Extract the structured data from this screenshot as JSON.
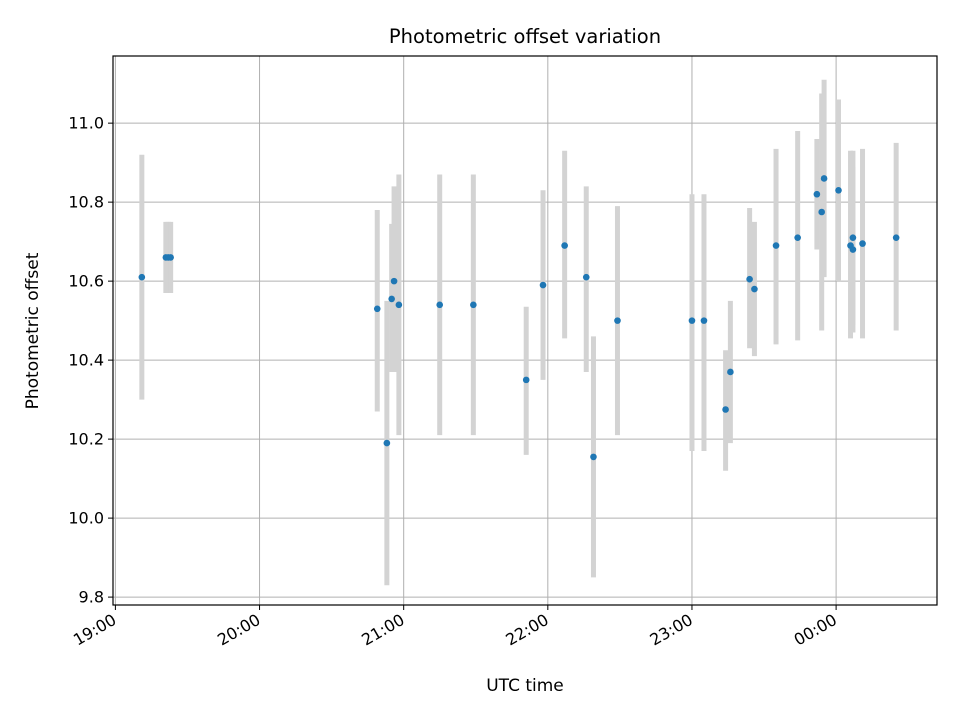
{
  "chart_data": {
    "type": "scatter",
    "title": "Photometric offset variation",
    "xlabel": "UTC time",
    "ylabel": "Photometric offset",
    "x_ticks": [
      "19:00",
      "20:00",
      "21:00",
      "22:00",
      "23:00",
      "00:00"
    ],
    "y_ticks": [
      "9.8",
      "10.0",
      "10.2",
      "10.4",
      "10.6",
      "10.8",
      "11.0"
    ],
    "xlim": [
      "18:59",
      "00:42"
    ],
    "ylim": [
      9.78,
      11.17
    ],
    "grid": true,
    "colors": {
      "points": "#1f77b4",
      "errorbars": "#d3d3d3",
      "grid": "#b0b0b0"
    },
    "points": [
      {
        "x": "19:11",
        "y": 10.61,
        "low": 10.3,
        "high": 10.92
      },
      {
        "x": "19:21",
        "y": 10.66,
        "low": 10.57,
        "high": 10.75
      },
      {
        "x": "19:22",
        "y": 10.66,
        "low": 10.57,
        "high": 10.75
      },
      {
        "x": "19:23",
        "y": 10.66,
        "low": 10.57,
        "high": 10.75
      },
      {
        "x": "20:49",
        "y": 10.53,
        "low": 10.27,
        "high": 10.78
      },
      {
        "x": "20:53",
        "y": 10.19,
        "low": 9.83,
        "high": 10.55
      },
      {
        "x": "20:55",
        "y": 10.555,
        "low": 10.37,
        "high": 10.745
      },
      {
        "x": "20:56",
        "y": 10.6,
        "low": 10.37,
        "high": 10.84
      },
      {
        "x": "20:58",
        "y": 10.54,
        "low": 10.21,
        "high": 10.87
      },
      {
        "x": "21:15",
        "y": 10.54,
        "low": 10.21,
        "high": 10.87
      },
      {
        "x": "21:29",
        "y": 10.54,
        "low": 10.21,
        "high": 10.87
      },
      {
        "x": "21:51",
        "y": 10.35,
        "low": 10.16,
        "high": 10.535
      },
      {
        "x": "21:58",
        "y": 10.59,
        "low": 10.35,
        "high": 10.83
      },
      {
        "x": "22:07",
        "y": 10.69,
        "low": 10.455,
        "high": 10.93
      },
      {
        "x": "22:16",
        "y": 10.61,
        "low": 10.37,
        "high": 10.84
      },
      {
        "x": "22:19",
        "y": 10.155,
        "low": 9.85,
        "high": 10.46
      },
      {
        "x": "22:29",
        "y": 10.5,
        "low": 10.21,
        "high": 10.79
      },
      {
        "x": "23:00",
        "y": 10.5,
        "low": 10.17,
        "high": 10.82
      },
      {
        "x": "23:05",
        "y": 10.5,
        "low": 10.17,
        "high": 10.82
      },
      {
        "x": "23:14",
        "y": 10.275,
        "low": 10.12,
        "high": 10.425
      },
      {
        "x": "23:16",
        "y": 10.37,
        "low": 10.19,
        "high": 10.55
      },
      {
        "x": "23:24",
        "y": 10.605,
        "low": 10.43,
        "high": 10.785
      },
      {
        "x": "23:26",
        "y": 10.58,
        "low": 10.41,
        "high": 10.75
      },
      {
        "x": "23:35",
        "y": 10.69,
        "low": 10.44,
        "high": 10.935
      },
      {
        "x": "23:44",
        "y": 10.71,
        "low": 10.45,
        "high": 10.98
      },
      {
        "x": "23:52",
        "y": 10.82,
        "low": 10.68,
        "high": 10.96
      },
      {
        "x": "23:54",
        "y": 10.775,
        "low": 10.475,
        "high": 11.075
      },
      {
        "x": "23:55",
        "y": 10.86,
        "low": 10.61,
        "high": 11.11
      },
      {
        "x": "00:01",
        "y": 10.83,
        "low": 10.6,
        "high": 11.06
      },
      {
        "x": "00:06",
        "y": 10.69,
        "low": 10.455,
        "high": 10.93
      },
      {
        "x": "00:07",
        "y": 10.68,
        "low": 10.47,
        "high": 10.89
      },
      {
        "x": "00:07",
        "y": 10.71,
        "low": 10.49,
        "high": 10.93
      },
      {
        "x": "00:11",
        "y": 10.695,
        "low": 10.455,
        "high": 10.935
      },
      {
        "x": "00:25",
        "y": 10.71,
        "low": 10.475,
        "high": 10.95
      }
    ]
  }
}
